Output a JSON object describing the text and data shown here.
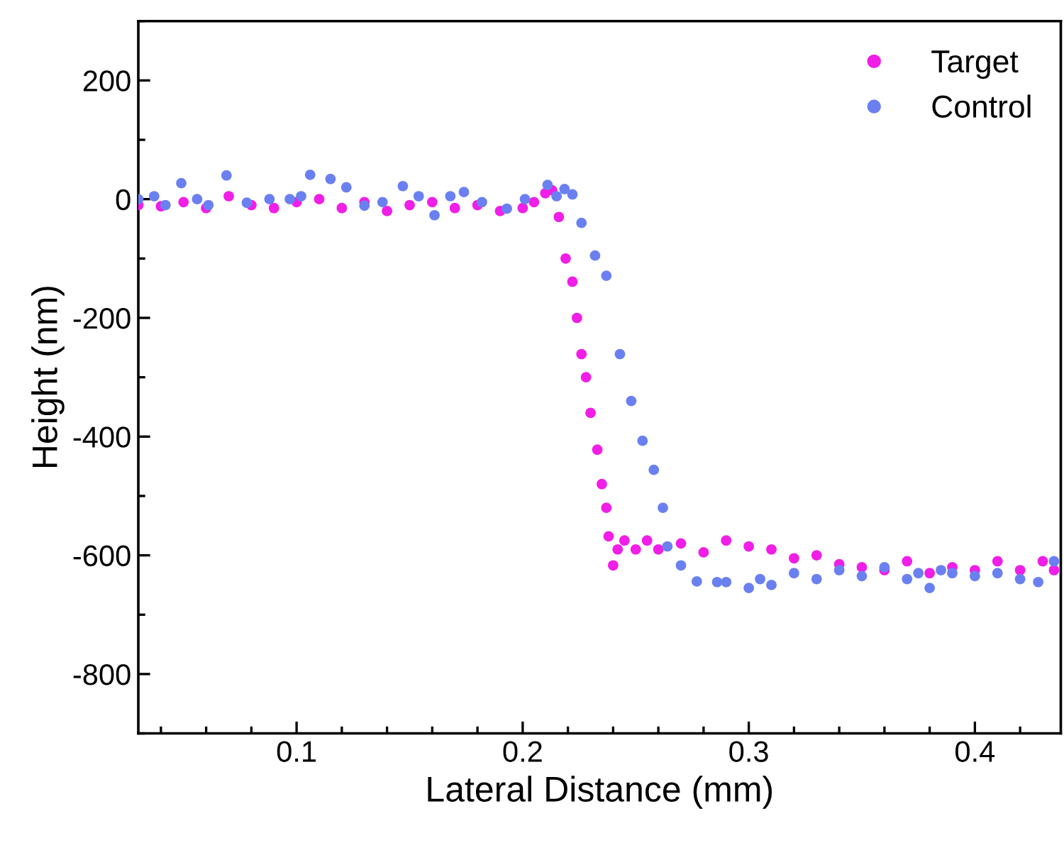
{
  "chart_data": {
    "type": "scatter",
    "xlabel": "Lateral Distance (mm)",
    "ylabel": "Height (nm)",
    "xlim": [
      0.03,
      0.438
    ],
    "xticks": [
      0.1,
      0.2,
      0.3,
      0.4
    ],
    "ylim": [
      -900,
      300
    ],
    "yticks": [
      -800,
      -600,
      -400,
      -200,
      0,
      200
    ],
    "grid": false,
    "legend": "top right",
    "marker": "circle",
    "series": [
      {
        "name": "Target",
        "color": "#f01ee6",
        "x": [
          0.03,
          0.04,
          0.05,
          0.06,
          0.07,
          0.08,
          0.09,
          0.1,
          0.11,
          0.12,
          0.13,
          0.14,
          0.15,
          0.16,
          0.17,
          0.18,
          0.19,
          0.2,
          0.205,
          0.21,
          0.213,
          0.216,
          0.219,
          0.222,
          0.224,
          0.226,
          0.228,
          0.23,
          0.233,
          0.235,
          0.237,
          0.238,
          0.24,
          0.242,
          0.245,
          0.25,
          0.255,
          0.26,
          0.27,
          0.28,
          0.29,
          0.3,
          0.31,
          0.32,
          0.33,
          0.34,
          0.35,
          0.36,
          0.37,
          0.38,
          0.39,
          0.4,
          0.41,
          0.42,
          0.43,
          0.435
        ],
        "values": [
          -10,
          -12,
          -5,
          -15,
          5,
          -10,
          -15,
          -5,
          0,
          -15,
          -5,
          -20,
          -10,
          -5,
          -15,
          -10,
          -20,
          -15,
          -5,
          10,
          15,
          -30,
          -100,
          -139,
          -200,
          -261,
          -300,
          -360,
          -422,
          -480,
          -520,
          -568,
          -617,
          -590,
          -575,
          -590,
          -575,
          -590,
          -580,
          -595,
          -575,
          -585,
          -590,
          -605,
          -600,
          -615,
          -620,
          -625,
          -610,
          -630,
          -620,
          -625,
          -610,
          -625,
          -610,
          -625
        ]
      },
      {
        "name": "Control",
        "color": "#6b80f0",
        "x": [
          0.03,
          0.037,
          0.042,
          0.049,
          0.056,
          0.061,
          0.069,
          0.078,
          0.088,
          0.097,
          0.102,
          0.106,
          0.115,
          0.122,
          0.13,
          0.138,
          0.147,
          0.154,
          0.161,
          0.168,
          0.174,
          0.182,
          0.193,
          0.201,
          0.211,
          0.215,
          0.2185,
          0.222,
          0.226,
          0.232,
          0.237,
          0.243,
          0.248,
          0.253,
          0.258,
          0.262,
          0.264,
          0.27,
          0.277,
          0.286,
          0.29,
          0.3,
          0.305,
          0.31,
          0.32,
          0.33,
          0.34,
          0.35,
          0.36,
          0.37,
          0.375,
          0.38,
          0.385,
          0.39,
          0.4,
          0.41,
          0.42,
          0.428,
          0.435
        ],
        "values": [
          0,
          5,
          -10,
          27,
          0,
          -10,
          40,
          -6,
          0,
          0,
          5,
          41,
          34,
          20,
          -11,
          -5,
          22,
          5,
          -27,
          5,
          12,
          -5,
          -16,
          0,
          24,
          5,
          17,
          8,
          -40,
          -95,
          -129,
          -261,
          -340,
          -407,
          -456,
          -520,
          -585,
          -617,
          -644,
          -645,
          -645,
          -655,
          -640,
          -650,
          -630,
          -640,
          -625,
          -635,
          -620,
          -640,
          -630,
          -655,
          -625,
          -630,
          -635,
          -630,
          -640,
          -645,
          -610
        ]
      }
    ]
  }
}
